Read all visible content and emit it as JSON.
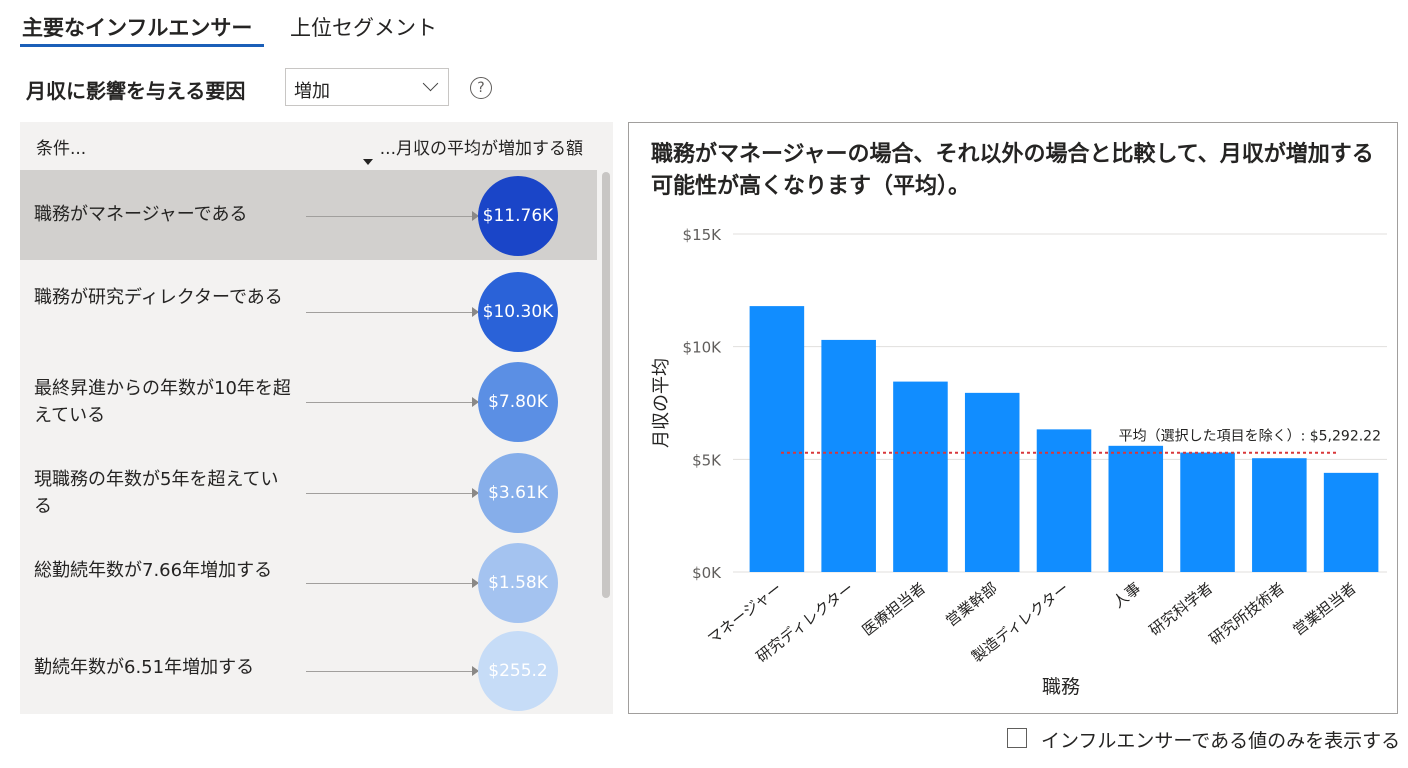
{
  "tabs": [
    {
      "label": "主要なインフルエンサー",
      "active": true
    },
    {
      "label": "上位セグメント",
      "active": false
    }
  ],
  "factor_label": "月収に影響を与える要因",
  "dropdown": {
    "selected": "増加"
  },
  "help_icon": "question-circle-icon",
  "list": {
    "col_left": "条件...",
    "col_right": "...月収の平均が増加する額",
    "rows": [
      {
        "text": "職務がマネージャーである",
        "value_label": "$11.76K",
        "color": "#1a45c8",
        "selected": true
      },
      {
        "text": "職務が研究ディレクターである",
        "value_label": "$10.30K",
        "color": "#2a62d8",
        "selected": false
      },
      {
        "text": "最終昇進からの年数が10年を超えている",
        "value_label": "$7.80K",
        "color": "#5b8fe4",
        "selected": false
      },
      {
        "text": "現職務の年数が5年を超えている",
        "value_label": "$3.61K",
        "color": "#86aeea",
        "selected": false
      },
      {
        "text": "総勤続年数が7.66年増加する",
        "value_label": "$1.58K",
        "color": "#a4c3f0",
        "selected": false
      },
      {
        "text": "勤続年数が6.51年増加する",
        "value_label": "$255.2",
        "color": "#c6dcf7",
        "selected": false
      }
    ]
  },
  "chart_panel": {
    "title": "職務がマネージャーの場合、それ以外の場合と比較して、月収が増加する可能性が高くなります（平均）。"
  },
  "chart_data": {
    "type": "bar",
    "categories": [
      "マネージャー",
      "研究ディレクター",
      "医療担当者",
      "営業幹部",
      "製造ディレクター",
      "人事",
      "研究科学者",
      "研究所技術者",
      "営業担当者"
    ],
    "values": [
      11800,
      10300,
      8450,
      7950,
      6330,
      5600,
      5300,
      5050,
      4400
    ],
    "xlabel": "職務",
    "ylabel": "月収の平均",
    "ylim": [
      0,
      15000
    ],
    "yticks": [
      0,
      5000,
      10000,
      15000
    ],
    "ytick_labels": [
      "$0K",
      "$5K",
      "$10K",
      "$15K"
    ],
    "reference_line": {
      "value": 5292.22,
      "label": "平均（選択した項目を除く）: $5,292.22",
      "color": "#d9383a"
    },
    "bar_color": "#118dff",
    "grid": true
  },
  "show_only": {
    "label": "インフルエンサーである値のみを表示する",
    "checked": false
  }
}
